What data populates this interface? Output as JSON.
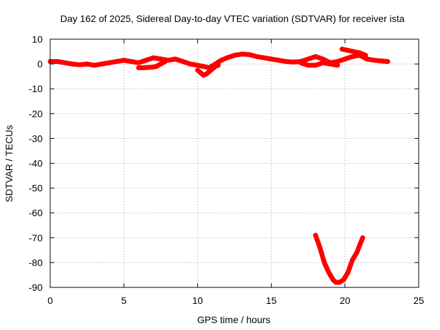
{
  "chart_data": {
    "type": "scatter",
    "title": "Day 162 of 2025, Sidereal Day-to-day VTEC variation (SDTVAR) for receiver ista",
    "xlabel": "GPS time / hours",
    "ylabel": "SDTVAR / TECUs",
    "xlim": [
      0,
      25
    ],
    "ylim": [
      -90,
      10
    ],
    "xticks": [
      0,
      5,
      10,
      15,
      20,
      25
    ],
    "yticks": [
      10,
      0,
      -10,
      -20,
      -30,
      -40,
      -50,
      -60,
      -70,
      -80,
      -90
    ],
    "grid": true,
    "legend": "none",
    "marker_color": "#ff0000",
    "series": [
      {
        "name": "main-trace",
        "x": [
          0.0,
          0.5,
          1.0,
          1.5,
          2.0,
          2.5,
          3.0,
          3.5,
          4.0,
          4.5,
          5.0,
          5.5,
          6.0,
          6.5,
          7.0,
          7.5,
          8.0,
          8.5,
          9.0,
          9.5,
          10.0,
          10.4,
          10.8,
          11.2,
          11.6,
          12.0,
          12.5,
          13.0,
          13.5,
          14.0,
          14.5,
          15.0,
          15.5,
          16.0,
          16.5,
          17.0,
          17.5,
          18.0,
          18.5,
          19.0,
          19.5,
          20.0,
          20.5,
          21.0,
          21.5,
          22.0,
          22.5,
          22.9
        ],
        "y": [
          1.0,
          1.0,
          0.5,
          0.0,
          -0.3,
          0.0,
          -0.5,
          0.0,
          0.5,
          1.0,
          1.5,
          1.0,
          0.5,
          1.5,
          2.5,
          2.0,
          1.5,
          2.0,
          1.0,
          0.0,
          -0.5,
          -1.0,
          -1.5,
          0.0,
          1.5,
          2.5,
          3.5,
          4.0,
          3.8,
          3.0,
          2.5,
          2.0,
          1.5,
          1.0,
          0.8,
          1.0,
          2.0,
          3.0,
          2.0,
          0.5,
          1.0,
          2.0,
          3.0,
          3.5,
          2.0,
          1.5,
          1.2,
          1.0
        ]
      },
      {
        "name": "offset-segment-6h",
        "x": [
          6.0,
          6.3,
          6.6,
          6.9,
          7.2,
          7.5,
          7.8
        ],
        "y": [
          -1.5,
          -1.5,
          -1.4,
          -1.3,
          -1.0,
          0.0,
          1.0
        ]
      },
      {
        "name": "offset-segment-10h",
        "x": [
          10.0,
          10.2,
          10.4,
          10.6,
          10.8,
          11.0,
          11.2,
          11.4
        ],
        "y": [
          -2.5,
          -3.5,
          -4.5,
          -4.0,
          -3.0,
          -2.0,
          -1.0,
          -0.5
        ]
      },
      {
        "name": "offset-segment-17h",
        "x": [
          17.0,
          17.5,
          18.0,
          18.5,
          19.0,
          19.5
        ],
        "y": [
          0.5,
          -0.5,
          -0.5,
          0.5,
          0.0,
          -0.5
        ]
      },
      {
        "name": "high-segment-20h",
        "x": [
          19.8,
          20.2,
          20.6,
          21.0,
          21.4
        ],
        "y": [
          6.0,
          5.5,
          5.0,
          4.5,
          3.5
        ]
      },
      {
        "name": "v-dip-18-21h",
        "x": [
          18.0,
          18.3,
          18.6,
          18.9,
          19.2,
          19.4,
          19.6,
          19.9,
          20.2,
          20.5,
          20.8,
          21.0,
          21.2
        ],
        "y": [
          -69,
          -74,
          -80,
          -84,
          -87,
          -88,
          -88,
          -87,
          -84,
          -79,
          -76,
          -73,
          -70
        ]
      }
    ]
  }
}
